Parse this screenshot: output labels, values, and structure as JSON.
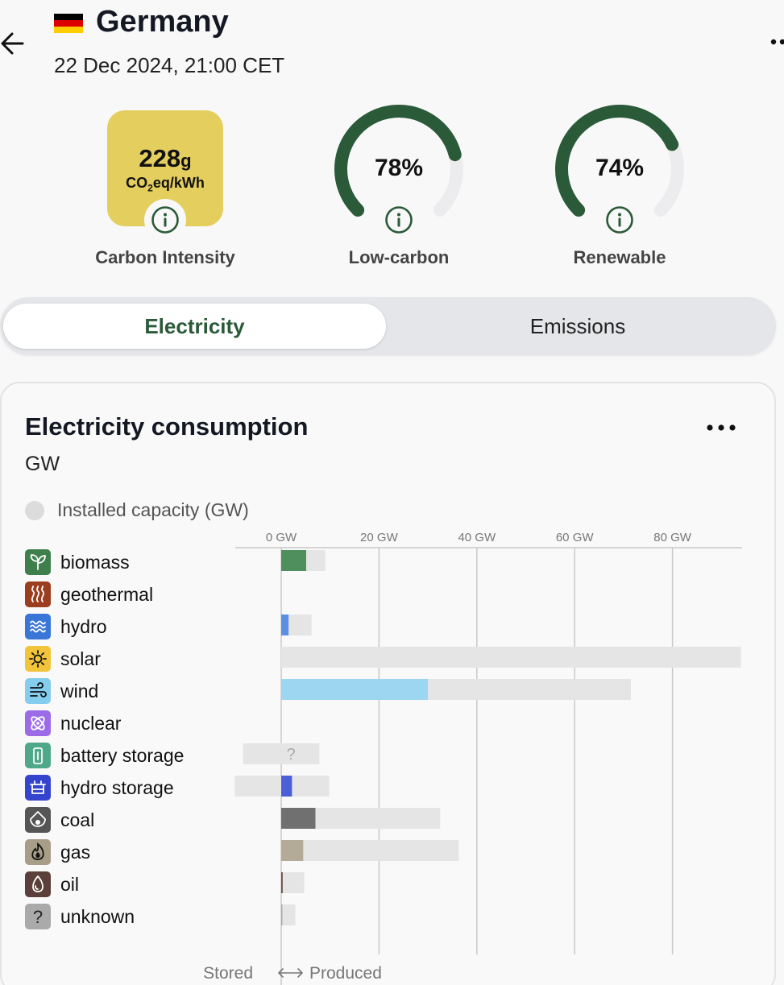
{
  "header": {
    "country": "Germany",
    "datetime": "22 Dec 2024, 21:00 CET",
    "flag_colors": [
      "#000000",
      "#dd0000",
      "#ffce00"
    ]
  },
  "cards": {
    "carbon_intensity": {
      "value": "228",
      "unit": "g",
      "sub_prefix": "CO",
      "sub_suffix": "eq/kWh",
      "label": "Carbon Intensity",
      "color": "#e3ce5e"
    },
    "low_carbon": {
      "value": "78%",
      "fraction": 0.78,
      "label": "Low-carbon"
    },
    "renewable": {
      "value": "74%",
      "fraction": 0.74,
      "label": "Renewable"
    },
    "gauge_color": "#2a5a38"
  },
  "tabs": {
    "active": "Electricity",
    "inactive": "Emissions"
  },
  "panel": {
    "title": "Electricity consumption",
    "unit": "GW",
    "legend": "Installed capacity (GW)",
    "footer_stored": "Stored",
    "footer_produced": "Produced"
  },
  "chart_data": {
    "type": "bar",
    "orientation": "horizontal",
    "x_ticks": [
      "0 GW",
      "20 GW",
      "40 GW",
      "60 GW",
      "80 GW"
    ],
    "x_tick_values": [
      0,
      20,
      40,
      60,
      80
    ],
    "xlim": [
      -9.5,
      94
    ],
    "grid": true,
    "rows": [
      {
        "name": "biomass",
        "produced": 5.1,
        "capacity": 9.0,
        "color": "#4f8f5e",
        "icon": "leaf-icon",
        "icon_bg": "#3f7f4d"
      },
      {
        "name": "geothermal",
        "produced": 0,
        "capacity": 0,
        "color": "#9b3e1f",
        "icon": "heat-icon",
        "icon_bg": "#9b3e1f"
      },
      {
        "name": "hydro",
        "produced": 1.5,
        "capacity": 6.2,
        "color": "#5a8fe6",
        "icon": "waves-icon",
        "icon_bg": "#3a76d8"
      },
      {
        "name": "solar",
        "produced": 0,
        "capacity": 94,
        "color": "#f2c94c",
        "icon": "sun-icon",
        "icon_bg": "#f2c43c"
      },
      {
        "name": "wind",
        "produced": 30,
        "capacity": 71.5,
        "color": "#9dd6f0",
        "icon": "wind-icon",
        "icon_bg": "#85cdee"
      },
      {
        "name": "nuclear",
        "produced": 0,
        "capacity": 0,
        "color": "#9b6be8",
        "icon": "atom-icon",
        "icon_bg": "#9b6be8"
      },
      {
        "name": "battery storage",
        "produced": 0,
        "stored": 0,
        "capacity": 7.8,
        "capacity_stored": 7.8,
        "unknown_marker": "?",
        "color": "#4fa889",
        "icon": "battery-icon",
        "icon_bg": "#4fa889"
      },
      {
        "name": "hydro storage",
        "produced": 2.2,
        "capacity": 9.8,
        "capacity_stored": 9.5,
        "color": "#4a5fd8",
        "icon": "pump-icon",
        "icon_bg": "#3444cc"
      },
      {
        "name": "coal",
        "produced": 7.0,
        "capacity": 32.5,
        "color": "#707070",
        "icon": "coal-icon",
        "icon_bg": "#555555"
      },
      {
        "name": "gas",
        "produced": 4.5,
        "capacity": 36.3,
        "color": "#b3aa98",
        "icon": "flame-icon",
        "icon_bg": "#a89e88"
      },
      {
        "name": "oil",
        "produced": 0.3,
        "capacity": 4.7,
        "color": "#6b4d40",
        "icon": "drop-icon",
        "icon_bg": "#5a4038"
      },
      {
        "name": "unknown",
        "produced": 0.2,
        "capacity": 2.9,
        "color": "#aaaaaa",
        "icon": "question-icon",
        "icon_bg": "#aaaaaa",
        "icon_glyph": "?"
      }
    ]
  }
}
